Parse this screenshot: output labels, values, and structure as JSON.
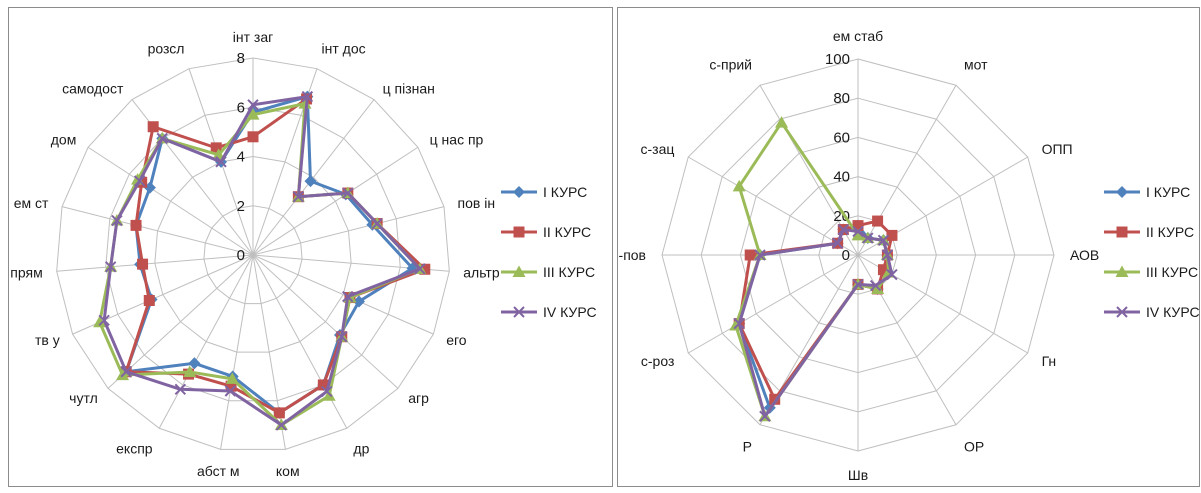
{
  "colors": {
    "I": "#4f81bd",
    "II": "#c0504d",
    "III": "#9bbb59",
    "IV": "#8064a2",
    "grid": "#bfbfbf"
  },
  "chart_data": [
    {
      "type": "radar",
      "title": "",
      "rmax": 8,
      "ticks": [
        0,
        2,
        4,
        6,
        8
      ],
      "categories": [
        "інт заг",
        "інт дос",
        "ц пізнан",
        "ц нас пр",
        "пов ін",
        "альтр",
        "его",
        "агр",
        "др",
        "ком",
        "абст м",
        "експр",
        "чутл",
        "тв у",
        "прям",
        "ем ст",
        "дом",
        "самодост",
        "розсл"
      ],
      "legend": [
        "І КУРС",
        "ІІ КУРС",
        "ІІІ КУРС",
        "ІV КУРС"
      ],
      "legend_position": "right",
      "series": [
        {
          "name": "І КУРС",
          "values": [
            5.8,
            6.8,
            3.8,
            4.5,
            5.0,
            6.5,
            4.7,
            4.8,
            6.0,
            6.5,
            5.0,
            5.0,
            7.0,
            4.5,
            4.6,
            4.9,
            5.0,
            6.0,
            4.0
          ]
        },
        {
          "name": "ІІ КУРС",
          "values": [
            4.8,
            6.7,
            3.0,
            4.6,
            5.2,
            7.0,
            4.3,
            4.9,
            6.0,
            6.5,
            5.4,
            5.5,
            7.0,
            4.6,
            4.5,
            4.9,
            5.4,
            6.6,
            4.6
          ]
        },
        {
          "name": "ІІІ КУРС",
          "values": [
            5.7,
            6.5,
            3.0,
            4.6,
            5.2,
            6.8,
            4.3,
            4.9,
            6.5,
            7.0,
            5.1,
            5.4,
            7.2,
            6.8,
            5.8,
            5.7,
            5.6,
            6.0,
            4.3
          ]
        },
        {
          "name": "ІV КУРС",
          "values": [
            6.1,
            6.8,
            3.0,
            4.6,
            5.2,
            6.8,
            4.2,
            4.9,
            6.3,
            7.0,
            5.6,
            6.2,
            7.0,
            6.6,
            5.8,
            5.7,
            5.5,
            6.0,
            4.0
          ]
        }
      ]
    },
    {
      "type": "radar",
      "title": "",
      "rmax": 100,
      "ticks": [
        0,
        20,
        40,
        60,
        80,
        100
      ],
      "categories": [
        "ем стаб",
        "мот",
        "ОПП",
        "АОВ",
        "Гн",
        "ОР",
        "Шв",
        "Р",
        "с-роз",
        "с-пов",
        "с-зац",
        "с-прий"
      ],
      "legend": [
        "І КУРС",
        "ІІ КУРС",
        "ІІІ КУРС",
        "ІV КУРС"
      ],
      "legend_position": "right",
      "series": [
        {
          "name": "І КУРС",
          "values": [
            15,
            10,
            15,
            15,
            18,
            20,
            15,
            90,
            70,
            50,
            12,
            15
          ]
        },
        {
          "name": "ІІ КУРС",
          "values": [
            15,
            20,
            20,
            15,
            15,
            20,
            15,
            85,
            70,
            55,
            12,
            15
          ]
        },
        {
          "name": "ІІІ КУРС",
          "values": [
            10,
            10,
            15,
            15,
            18,
            20,
            15,
            95,
            72,
            50,
            70,
            78
          ]
        },
        {
          "name": "ІV КУРС",
          "values": [
            12,
            10,
            15,
            15,
            20,
            18,
            15,
            95,
            70,
            50,
            12,
            15
          ]
        }
      ]
    }
  ]
}
